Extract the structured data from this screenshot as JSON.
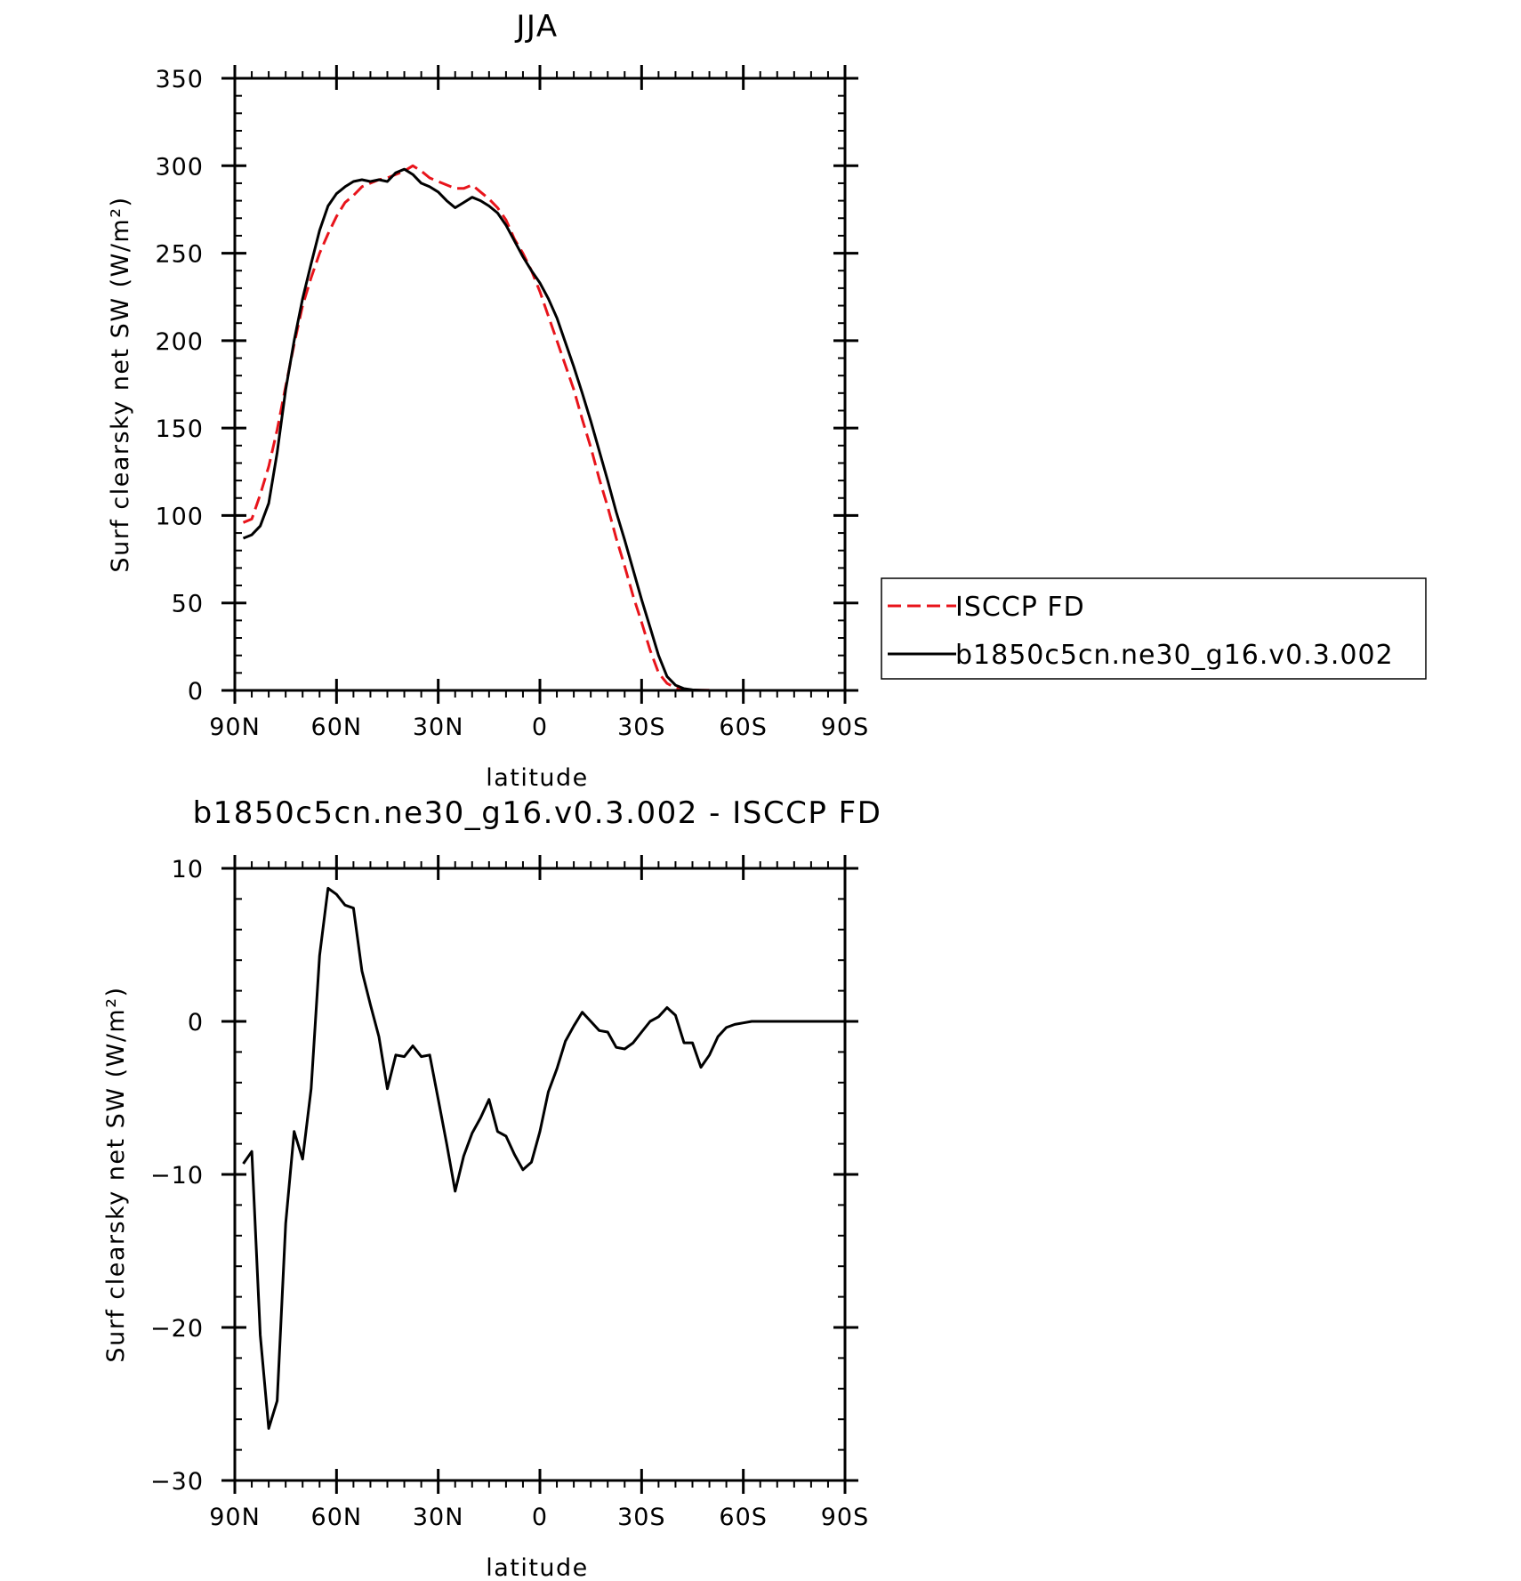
{
  "chart_data": [
    {
      "type": "line",
      "title": "JJA",
      "xlabel": "latitude",
      "ylabel": "Surf clearsky net SW (W/m²)",
      "xlim": [
        90,
        -90
      ],
      "ylim": [
        0,
        350
      ],
      "x_ticks": [
        90,
        60,
        30,
        0,
        -30,
        -60,
        -90
      ],
      "x_tick_labels": [
        "90N",
        "60N",
        "30N",
        "0",
        "30S",
        "60S",
        "90S"
      ],
      "y_ticks": [
        0,
        50,
        100,
        150,
        200,
        250,
        300,
        350
      ],
      "y_tick_labels": [
        "0",
        "50",
        "100",
        "150",
        "200",
        "250",
        "300",
        "350"
      ],
      "legend_position": "right",
      "series": [
        {
          "name": "ISCCP FD",
          "color": "#e8141b",
          "dash": "dashed",
          "x": [
            87.5,
            85,
            82.5,
            80,
            77.5,
            75,
            72.5,
            70,
            67.5,
            65,
            62.5,
            60,
            57.5,
            55,
            52.5,
            50,
            47.5,
            45,
            42.5,
            40,
            37.5,
            35,
            32.5,
            30,
            27.5,
            25,
            22.5,
            20,
            17.5,
            15,
            12.5,
            10,
            7.5,
            5,
            2.5,
            0,
            -2.5,
            -5,
            -7.5,
            -10,
            -12.5,
            -15,
            -17.5,
            -20,
            -22.5,
            -25,
            -27.5,
            -30,
            -32.5,
            -35,
            -37.5,
            -40,
            -42.5,
            -45,
            -47.5,
            -50,
            -52.5,
            -55,
            -57.5,
            -60,
            -62.5,
            -65,
            -67.5,
            -70,
            -72.5,
            -75,
            -77.5,
            -80,
            -82.5,
            -85,
            -87.5
          ],
          "y": [
            96,
            98,
            112,
            128,
            149,
            174,
            198,
            220,
            236,
            250,
            261,
            271,
            279,
            283,
            288,
            290,
            292,
            293,
            295,
            297,
            300,
            297,
            293,
            291,
            289,
            287,
            287,
            289,
            285,
            281,
            276,
            269,
            258,
            250,
            240,
            228,
            214,
            200,
            186,
            172,
            155,
            139,
            121,
            105,
            87,
            71,
            54,
            39,
            23,
            10,
            4,
            1.5,
            0.5,
            0.2,
            0.1,
            0.1,
            0,
            0,
            0,
            0,
            0,
            0,
            0,
            0,
            0,
            0,
            0,
            0,
            0,
            0,
            0
          ]
        },
        {
          "name": "b1850c5cn.ne30_g16.v0.3.002",
          "color": "#000000",
          "dash": "solid",
          "x": [
            87.5,
            85,
            82.5,
            80,
            77.5,
            75,
            72.5,
            70,
            67.5,
            65,
            62.5,
            60,
            57.5,
            55,
            52.5,
            50,
            47.5,
            45,
            42.5,
            40,
            37.5,
            35,
            32.5,
            30,
            27.5,
            25,
            22.5,
            20,
            17.5,
            15,
            12.5,
            10,
            7.5,
            5,
            2.5,
            0,
            -2.5,
            -5,
            -7.5,
            -10,
            -12.5,
            -15,
            -17.5,
            -20,
            -22.5,
            -25,
            -27.5,
            -30,
            -32.5,
            -35,
            -37.5,
            -40,
            -42.5,
            -45,
            -47.5,
            -50,
            -52.5,
            -55,
            -57.5,
            -60,
            -62.5,
            -65,
            -67.5,
            -70,
            -72.5,
            -75,
            -77.5,
            -80,
            -82.5,
            -85,
            -87.5
          ],
          "y": [
            87,
            89,
            94,
            107,
            136,
            172,
            200,
            224,
            244,
            263,
            277,
            284,
            288,
            291,
            292,
            291,
            292,
            291,
            296,
            298,
            295,
            290,
            288,
            285,
            280,
            276,
            279,
            282,
            280,
            277,
            273,
            266,
            257,
            248,
            240,
            233,
            224,
            213,
            199,
            185,
            170,
            154,
            137,
            120,
            102,
            86,
            69,
            52,
            36,
            20,
            8,
            3,
            1,
            0.3,
            0.1,
            0,
            0,
            0,
            0,
            0,
            0,
            0,
            0,
            0,
            0,
            0,
            0,
            0,
            0,
            0,
            0
          ]
        }
      ]
    },
    {
      "type": "line",
      "title": "b1850c5cn.ne30_g16.v0.3.002 - ISCCP FD",
      "xlabel": "latitude",
      "ylabel": "Surf clearsky net SW (W/m²)",
      "xlim": [
        90,
        -90
      ],
      "ylim": [
        -30,
        10
      ],
      "x_ticks": [
        90,
        60,
        30,
        0,
        -30,
        -60,
        -90
      ],
      "x_tick_labels": [
        "90N",
        "60N",
        "30N",
        "0",
        "30S",
        "60S",
        "90S"
      ],
      "y_ticks": [
        -30,
        -20,
        -10,
        0,
        10
      ],
      "y_tick_labels": [
        "−30",
        "−20",
        "−10",
        "0",
        "10"
      ],
      "series": [
        {
          "color": "#000000",
          "dash": "solid",
          "x": [
            87.5,
            85,
            82.5,
            80,
            77.5,
            75,
            72.5,
            70,
            67.5,
            65,
            62.5,
            60,
            57.5,
            55,
            52.5,
            50,
            47.5,
            45,
            42.5,
            40,
            37.5,
            35,
            32.5,
            30,
            27.5,
            25,
            22.5,
            20,
            17.5,
            15,
            12.5,
            10,
            7.5,
            5,
            2.5,
            0,
            -2.5,
            -5,
            -7.5,
            -10,
            -12.5,
            -15,
            -17.5,
            -20,
            -22.5,
            -25,
            -27.5,
            -30,
            -32.5,
            -35,
            -37.5,
            -40,
            -42.5,
            -45,
            -47.5,
            -50,
            -52.5,
            -55,
            -57.5,
            -60,
            -62.5,
            -65,
            -67.5,
            -70,
            -72.5,
            -75,
            -77.5,
            -80,
            -82.5,
            -85,
            -87.5
          ],
          "y": [
            -9.3,
            -8.5,
            -20.5,
            -26.6,
            -24.8,
            -13.2,
            -7.2,
            -9.0,
            -4.4,
            4.3,
            8.7,
            8.3,
            7.6,
            7.4,
            3.3,
            1.1,
            -1.0,
            -4.4,
            -2.2,
            -2.3,
            -1.6,
            -2.3,
            -2.2,
            -5.1,
            -8.0,
            -11.1,
            -8.8,
            -7.3,
            -6.3,
            -5.1,
            -7.2,
            -7.5,
            -8.7,
            -9.7,
            -9.2,
            -7.2,
            -4.6,
            -3.1,
            -1.3,
            -0.3,
            0.6,
            0.0,
            -0.6,
            -0.7,
            -1.7,
            -1.8,
            -1.4,
            -0.7,
            0.0,
            0.3,
            0.9,
            0.4,
            -1.4,
            -1.4,
            -3.0,
            -2.2,
            -1.0,
            -0.4,
            -0.2,
            -0.1,
            0.0,
            0.0,
            0.0,
            0.0,
            0.0,
            0.0,
            0.0,
            0.0,
            0.0,
            0.0,
            0.0
          ]
        }
      ]
    }
  ]
}
